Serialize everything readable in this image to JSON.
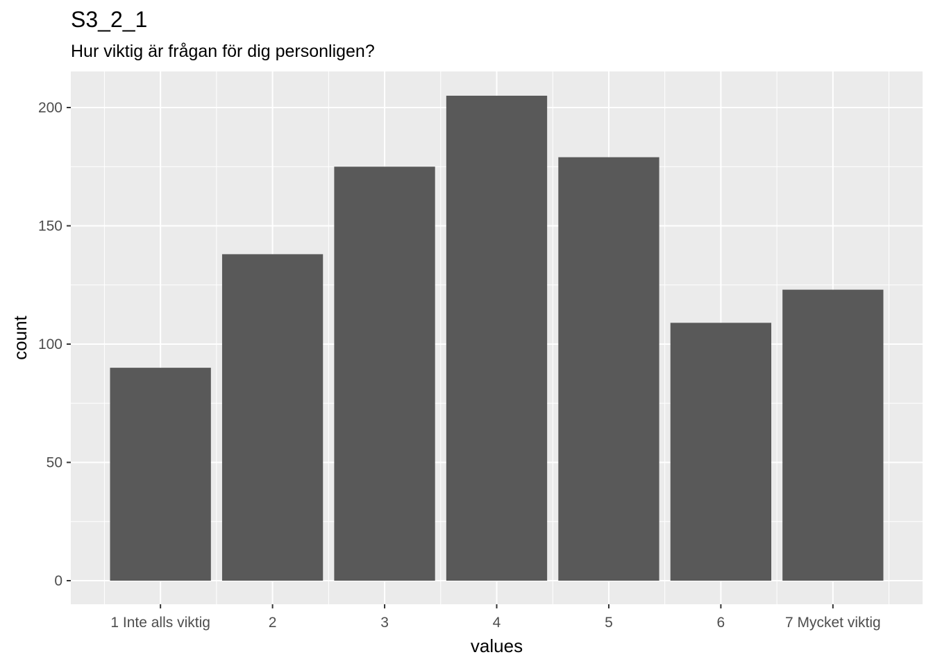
{
  "chart_data": {
    "type": "bar",
    "title": "S3_2_1",
    "subtitle": "Hur viktig är frågan för dig personligen?",
    "xlabel": "values",
    "ylabel": "count",
    "categories": [
      "1 Inte alls viktig",
      "2",
      "3",
      "4",
      "5",
      "6",
      "7 Mycket viktig"
    ],
    "values": [
      90,
      138,
      175,
      205,
      179,
      109,
      123
    ],
    "ylim": [
      0,
      215
    ],
    "yticks": [
      0,
      50,
      100,
      150,
      200
    ],
    "grid": true,
    "colors": {
      "panel": "#ebebeb",
      "grid": "#ffffff",
      "bar": "#595959",
      "tick": "#333333",
      "tick_label": "#4d4d4d"
    }
  }
}
